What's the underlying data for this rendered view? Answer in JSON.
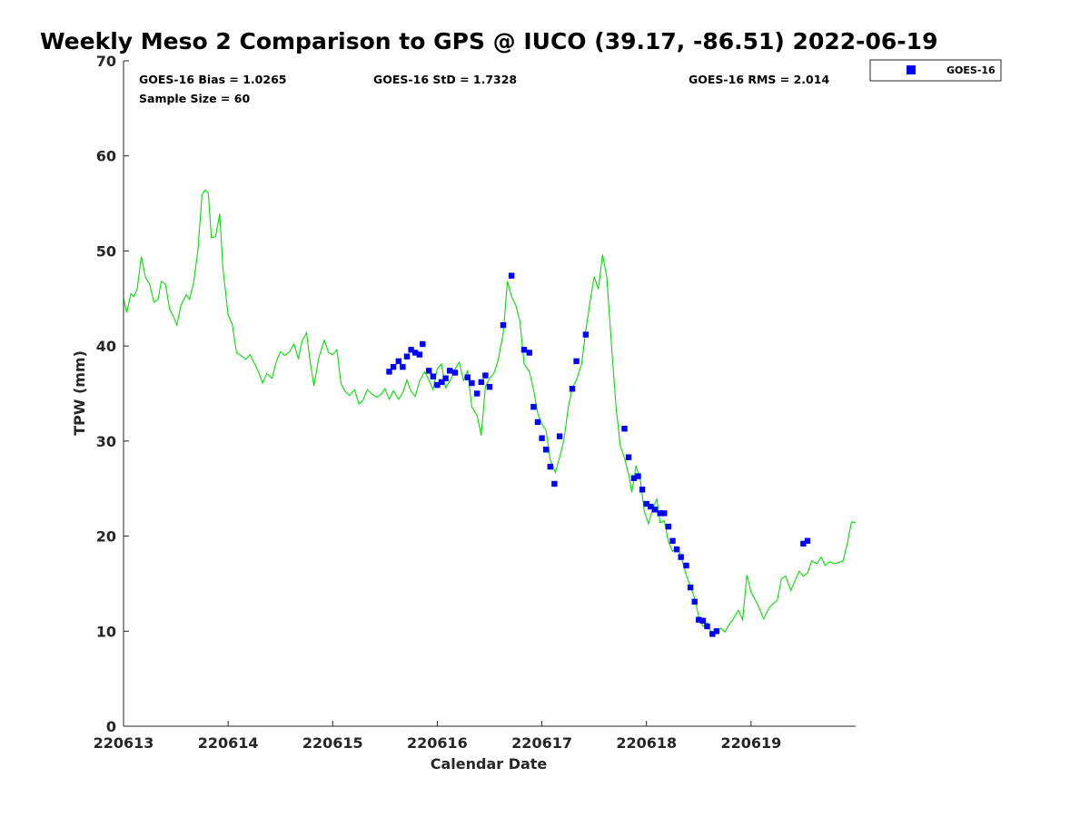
{
  "chart_data": {
    "type": "scatter",
    "title": "Weekly Meso 2 Comparison to GPS @ IUCO (39.17, -86.51) 2022-06-19",
    "xlabel": "Calendar Date",
    "ylabel": "TPW (mm)",
    "xlim": [
      0,
      7
    ],
    "ylim": [
      0,
      70
    ],
    "grid": false,
    "x_ticks": [
      {
        "value": 0,
        "label": "220613"
      },
      {
        "value": 1,
        "label": "220614"
      },
      {
        "value": 2,
        "label": "220615"
      },
      {
        "value": 3,
        "label": "220616"
      },
      {
        "value": 4,
        "label": "220617"
      },
      {
        "value": 5,
        "label": "220618"
      },
      {
        "value": 6,
        "label": "220619"
      }
    ],
    "y_ticks": [
      0,
      10,
      20,
      30,
      40,
      50,
      60,
      70
    ],
    "stats": {
      "bias": "GOES-16 Bias = 1.0265",
      "std": "GOES-16 StD = 1.7328",
      "rms": "GOES-16 RMS = 2.014",
      "sample": "Sample Size = 60"
    },
    "legend": {
      "position": "top-right outside",
      "entries": [
        "GOES-16"
      ]
    },
    "series": [
      {
        "name": "GOES-16",
        "kind": "scatter",
        "color": "#0000ff",
        "marker": "square",
        "points": [
          [
            2.54,
            37.3
          ],
          [
            2.58,
            37.8
          ],
          [
            2.63,
            38.4
          ],
          [
            2.67,
            37.8
          ],
          [
            2.71,
            38.9
          ],
          [
            2.75,
            39.6
          ],
          [
            2.79,
            39.3
          ],
          [
            2.83,
            39.1
          ],
          [
            2.86,
            40.2
          ],
          [
            2.92,
            37.4
          ],
          [
            2.96,
            36.8
          ],
          [
            3.0,
            35.9
          ],
          [
            3.04,
            36.2
          ],
          [
            3.08,
            36.6
          ],
          [
            3.12,
            37.4
          ],
          [
            3.17,
            37.2
          ],
          [
            3.29,
            36.7
          ],
          [
            3.33,
            36.1
          ],
          [
            3.38,
            35.0
          ],
          [
            3.42,
            36.2
          ],
          [
            3.46,
            36.9
          ],
          [
            3.5,
            35.7
          ],
          [
            3.63,
            42.2
          ],
          [
            3.71,
            47.4
          ],
          [
            3.83,
            39.6
          ],
          [
            3.88,
            39.3
          ],
          [
            3.92,
            33.6
          ],
          [
            3.96,
            32.0
          ],
          [
            4.0,
            30.3
          ],
          [
            4.04,
            29.1
          ],
          [
            4.08,
            27.3
          ],
          [
            4.12,
            25.5
          ],
          [
            4.17,
            30.5
          ],
          [
            4.29,
            35.5
          ],
          [
            4.33,
            38.4
          ],
          [
            4.42,
            41.2
          ],
          [
            4.79,
            31.3
          ],
          [
            4.83,
            28.3
          ],
          [
            4.88,
            26.1
          ],
          [
            4.92,
            26.3
          ],
          [
            4.96,
            24.9
          ],
          [
            5.0,
            23.4
          ],
          [
            5.04,
            23.1
          ],
          [
            5.08,
            22.8
          ],
          [
            5.13,
            22.4
          ],
          [
            5.17,
            22.4
          ],
          [
            5.21,
            21.0
          ],
          [
            5.25,
            19.5
          ],
          [
            5.29,
            18.6
          ],
          [
            5.33,
            17.8
          ],
          [
            5.38,
            16.9
          ],
          [
            5.42,
            14.6
          ],
          [
            5.46,
            13.1
          ],
          [
            5.5,
            11.2
          ],
          [
            5.54,
            11.1
          ],
          [
            5.58,
            10.5
          ],
          [
            5.63,
            9.7
          ],
          [
            5.67,
            10.0
          ],
          [
            6.5,
            19.2
          ],
          [
            6.54,
            19.5
          ]
        ]
      },
      {
        "kind": "line",
        "color": "#00e000",
        "points": [
          [
            0.0,
            45.0
          ],
          [
            0.03,
            43.5
          ],
          [
            0.07,
            45.5
          ],
          [
            0.1,
            45.2
          ],
          [
            0.13,
            46.0
          ],
          [
            0.17,
            49.4
          ],
          [
            0.21,
            47.2
          ],
          [
            0.25,
            46.5
          ],
          [
            0.29,
            44.6
          ],
          [
            0.33,
            44.9
          ],
          [
            0.36,
            46.8
          ],
          [
            0.4,
            46.5
          ],
          [
            0.44,
            43.9
          ],
          [
            0.48,
            43.0
          ],
          [
            0.51,
            42.2
          ],
          [
            0.55,
            44.3
          ],
          [
            0.6,
            45.4
          ],
          [
            0.63,
            44.9
          ],
          [
            0.67,
            46.6
          ],
          [
            0.71,
            50.0
          ],
          [
            0.75,
            55.9
          ],
          [
            0.78,
            56.4
          ],
          [
            0.81,
            56.1
          ],
          [
            0.84,
            51.4
          ],
          [
            0.88,
            51.5
          ],
          [
            0.92,
            53.9
          ],
          [
            0.95,
            48.2
          ],
          [
            1.0,
            43.3
          ],
          [
            1.04,
            42.3
          ],
          [
            1.08,
            39.3
          ],
          [
            1.12,
            39.0
          ],
          [
            1.17,
            38.6
          ],
          [
            1.21,
            39.1
          ],
          [
            1.25,
            38.2
          ],
          [
            1.29,
            37.3
          ],
          [
            1.33,
            36.1
          ],
          [
            1.37,
            37.1
          ],
          [
            1.42,
            36.6
          ],
          [
            1.46,
            38.3
          ],
          [
            1.5,
            39.4
          ],
          [
            1.54,
            39.0
          ],
          [
            1.58,
            39.3
          ],
          [
            1.63,
            40.2
          ],
          [
            1.67,
            38.7
          ],
          [
            1.71,
            40.6
          ],
          [
            1.75,
            41.4
          ],
          [
            1.78,
            38.7
          ],
          [
            1.82,
            35.8
          ],
          [
            1.87,
            38.9
          ],
          [
            1.92,
            40.6
          ],
          [
            1.96,
            39.3
          ],
          [
            2.0,
            39.1
          ],
          [
            2.04,
            39.6
          ],
          [
            2.08,
            36.0
          ],
          [
            2.12,
            35.2
          ],
          [
            2.16,
            34.8
          ],
          [
            2.21,
            35.4
          ],
          [
            2.25,
            33.9
          ],
          [
            2.29,
            34.3
          ],
          [
            2.33,
            35.4
          ],
          [
            2.37,
            35.0
          ],
          [
            2.42,
            34.6
          ],
          [
            2.46,
            34.9
          ],
          [
            2.5,
            35.5
          ],
          [
            2.54,
            34.4
          ],
          [
            2.58,
            35.3
          ],
          [
            2.63,
            34.4
          ],
          [
            2.67,
            35.1
          ],
          [
            2.71,
            36.4
          ],
          [
            2.75,
            35.2
          ],
          [
            2.79,
            34.7
          ],
          [
            2.83,
            36.3
          ],
          [
            2.88,
            37.3
          ],
          [
            2.92,
            36.4
          ],
          [
            2.96,
            35.4
          ],
          [
            3.0,
            37.6
          ],
          [
            3.04,
            38.1
          ],
          [
            3.08,
            35.6
          ],
          [
            3.13,
            36.5
          ],
          [
            3.17,
            37.6
          ],
          [
            3.21,
            38.3
          ],
          [
            3.25,
            36.4
          ],
          [
            3.29,
            37.4
          ],
          [
            3.33,
            33.6
          ],
          [
            3.38,
            32.7
          ],
          [
            3.42,
            30.6
          ],
          [
            3.46,
            35.7
          ],
          [
            3.5,
            36.6
          ],
          [
            3.54,
            37.1
          ],
          [
            3.58,
            38.4
          ],
          [
            3.63,
            41.3
          ],
          [
            3.67,
            46.8
          ],
          [
            3.71,
            45.2
          ],
          [
            3.75,
            44.3
          ],
          [
            3.79,
            42.6
          ],
          [
            3.83,
            38.1
          ],
          [
            3.88,
            37.3
          ],
          [
            3.92,
            35.4
          ],
          [
            3.96,
            32.9
          ],
          [
            4.0,
            31.8
          ],
          [
            4.04,
            31.1
          ],
          [
            4.08,
            28.0
          ],
          [
            4.13,
            26.7
          ],
          [
            4.17,
            28.3
          ],
          [
            4.21,
            30.1
          ],
          [
            4.25,
            33.4
          ],
          [
            4.29,
            35.6
          ],
          [
            4.33,
            36.4
          ],
          [
            4.38,
            38.1
          ],
          [
            4.42,
            41.6
          ],
          [
            4.46,
            44.6
          ],
          [
            4.5,
            47.3
          ],
          [
            4.54,
            46.0
          ],
          [
            4.58,
            49.6
          ],
          [
            4.62,
            47.3
          ],
          [
            4.67,
            39.4
          ],
          [
            4.71,
            33.5
          ],
          [
            4.75,
            29.5
          ],
          [
            4.79,
            28.2
          ],
          [
            4.83,
            26.5
          ],
          [
            4.86,
            24.6
          ],
          [
            4.9,
            27.4
          ],
          [
            4.94,
            26.0
          ],
          [
            4.98,
            22.6
          ],
          [
            5.02,
            21.3
          ],
          [
            5.06,
            22.9
          ],
          [
            5.1,
            23.9
          ],
          [
            5.13,
            21.4
          ],
          [
            5.17,
            21.6
          ],
          [
            5.21,
            19.4
          ],
          [
            5.25,
            18.4
          ],
          [
            5.29,
            18.9
          ],
          [
            5.33,
            17.9
          ],
          [
            5.38,
            15.9
          ],
          [
            5.42,
            14.7
          ],
          [
            5.46,
            13.5
          ],
          [
            5.5,
            11.5
          ],
          [
            5.54,
            10.5
          ],
          [
            5.58,
            10.9
          ],
          [
            5.63,
            9.6
          ],
          [
            5.67,
            10.1
          ],
          [
            5.71,
            10.3
          ],
          [
            5.75,
            9.9
          ],
          [
            5.79,
            10.7
          ],
          [
            5.83,
            11.3
          ],
          [
            5.88,
            12.2
          ],
          [
            5.92,
            11.2
          ],
          [
            5.96,
            15.9
          ],
          [
            6.0,
            14.1
          ],
          [
            6.04,
            13.3
          ],
          [
            6.08,
            12.4
          ],
          [
            6.12,
            11.3
          ],
          [
            6.17,
            12.4
          ],
          [
            6.21,
            12.9
          ],
          [
            6.25,
            13.2
          ],
          [
            6.29,
            15.5
          ],
          [
            6.33,
            15.8
          ],
          [
            6.38,
            14.3
          ],
          [
            6.42,
            15.3
          ],
          [
            6.46,
            16.3
          ],
          [
            6.5,
            15.8
          ],
          [
            6.54,
            16.1
          ],
          [
            6.58,
            17.4
          ],
          [
            6.63,
            17.1
          ],
          [
            6.67,
            17.8
          ],
          [
            6.71,
            16.9
          ],
          [
            6.75,
            17.3
          ],
          [
            6.79,
            17.1
          ],
          [
            6.83,
            17.2
          ],
          [
            6.88,
            17.4
          ],
          [
            6.92,
            19.2
          ],
          [
            6.96,
            21.5
          ],
          [
            7.0,
            21.4
          ]
        ]
      }
    ]
  }
}
